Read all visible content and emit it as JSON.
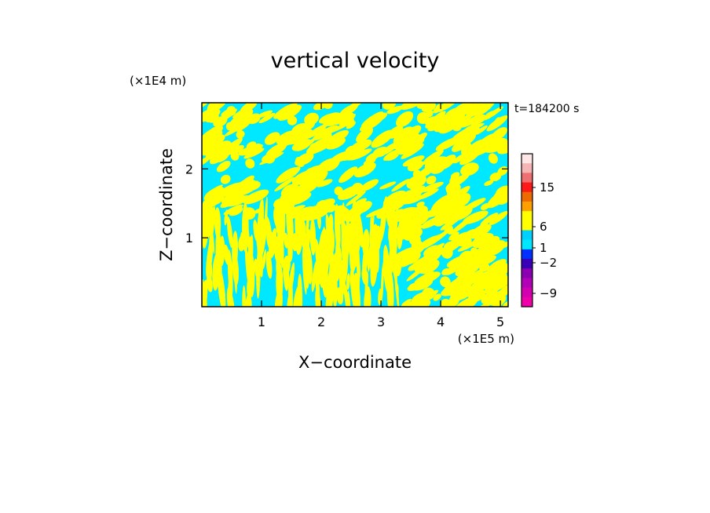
{
  "chart_data": {
    "type": "heatmap",
    "title": "vertical velocity",
    "xlabel": "X−coordinate",
    "ylabel": "Z−coordinate",
    "x_scale_label": "(×1E5 m)",
    "y_scale_label": "(×1E4 m)",
    "time_label": "t=184200 s",
    "xlim": [
      0,
      5.13
    ],
    "ylim": [
      0,
      2.96
    ],
    "x_ticks": [
      1,
      2,
      3,
      4,
      5
    ],
    "y_ticks": [
      1,
      2
    ],
    "field_colors": {
      "positive": "#ffff00",
      "negative": "#00e8ff"
    },
    "colorbar": {
      "levels": [
        -9,
        -2,
        1,
        6,
        15
      ],
      "tick_labels": [
        "15",
        "6",
        "1",
        "−2",
        "−9"
      ],
      "colors": [
        "#ffe6e6",
        "#f5b5b5",
        "#ee7070",
        "#ff1a1a",
        "#ee6a00",
        "#ffa000",
        "#ffff00",
        "#ffff00",
        "#00d0ff",
        "#00e8ff",
        "#0030ff",
        "#3a00b8",
        "#8a00b0",
        "#b000b8",
        "#d400b0",
        "#f000a8"
      ]
    }
  }
}
